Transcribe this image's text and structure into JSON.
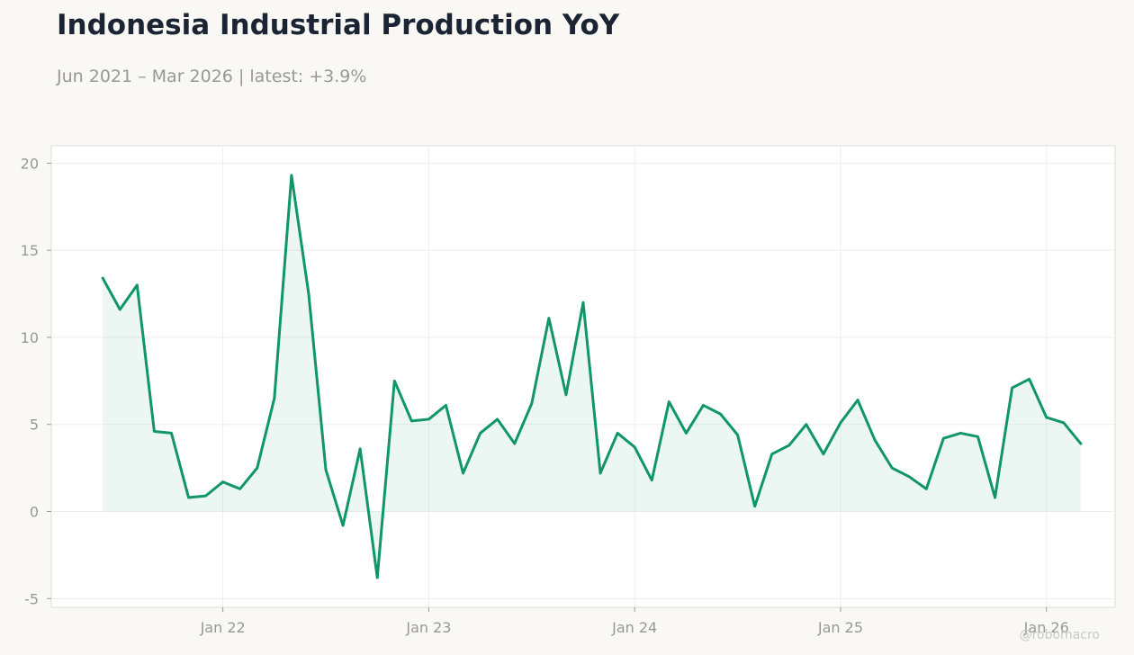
{
  "header": {
    "title": "Indonesia Industrial Production YoY",
    "subtitle": "Jun 2021 – Mar 2026 | latest: +3.9%"
  },
  "watermark": "@robomacro",
  "colors": {
    "line": "#109669",
    "fill": "#109669",
    "grid": "#eeeeee",
    "axis_text": "#999890",
    "frame": "#dcdcd6"
  },
  "chart_data": {
    "type": "area",
    "title": "Indonesia Industrial Production YoY",
    "xlabel": "",
    "ylabel": "",
    "x_start": "2021-06",
    "x_end": "2026-03",
    "xlim": [
      "2021-03",
      "2026-05"
    ],
    "ylim": [
      -5.5,
      21
    ],
    "y_ticks": [
      -5,
      0,
      5,
      10,
      15,
      20
    ],
    "y_tick_labels": [
      "-5",
      "0",
      "5",
      "10",
      "15",
      "20"
    ],
    "x_ticks": [
      "2022-01",
      "2023-01",
      "2024-01",
      "2025-01",
      "2026-01"
    ],
    "x_tick_labels": [
      "Jan 22",
      "Jan 23",
      "Jan 24",
      "Jan 25",
      "Jan 26"
    ],
    "grid": true,
    "legend": "none",
    "x": [
      "2021-06",
      "2021-07",
      "2021-08",
      "2021-09",
      "2021-10",
      "2021-11",
      "2021-12",
      "2022-01",
      "2022-02",
      "2022-03",
      "2022-04",
      "2022-05",
      "2022-06",
      "2022-07",
      "2022-08",
      "2022-09",
      "2022-10",
      "2022-11",
      "2022-12",
      "2023-01",
      "2023-02",
      "2023-03",
      "2023-04",
      "2023-05",
      "2023-06",
      "2023-07",
      "2023-08",
      "2023-09",
      "2023-10",
      "2023-11",
      "2023-12",
      "2024-01",
      "2024-02",
      "2024-03",
      "2024-04",
      "2024-05",
      "2024-06",
      "2024-07",
      "2024-08",
      "2024-09",
      "2024-10",
      "2024-11",
      "2024-12",
      "2025-01",
      "2025-02",
      "2025-03",
      "2025-04",
      "2025-05",
      "2025-06",
      "2025-07",
      "2025-08",
      "2025-09",
      "2025-10",
      "2025-11",
      "2025-12",
      "2026-01",
      "2026-02",
      "2026-03"
    ],
    "series": [
      {
        "values": [
          13.4,
          11.6,
          13.0,
          4.6,
          4.5,
          0.8,
          0.9,
          1.7,
          1.3,
          2.5,
          6.5,
          19.3,
          12.5,
          2.4,
          -0.8,
          3.6,
          -3.8,
          7.5,
          5.2,
          5.3,
          6.1,
          2.2,
          4.5,
          5.3,
          3.9,
          6.2,
          11.1,
          6.7,
          12.0,
          2.2,
          4.5,
          3.7,
          1.8,
          6.3,
          4.5,
          6.1,
          5.6,
          4.4,
          0.3,
          3.3,
          3.8,
          5.0,
          3.3,
          5.1,
          6.4,
          4.1,
          2.5,
          2.0,
          1.3,
          4.2,
          4.5,
          4.3,
          0.8,
          7.1,
          7.6,
          5.4,
          5.1,
          3.9
        ]
      }
    ]
  }
}
